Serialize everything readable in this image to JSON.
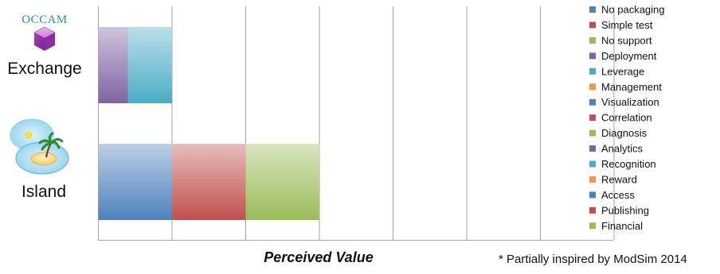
{
  "chart_data": {
    "type": "bar",
    "orientation": "horizontal",
    "stacked": true,
    "categories": [
      "OCCAM Exchange",
      "Island"
    ],
    "category_labels": [
      {
        "logo_text": "OCCAM",
        "label": "Exchange",
        "logo_icon": "cube-icon"
      },
      {
        "label": "Island",
        "logo_icon": "island-icon"
      }
    ],
    "xlabel": "Perceived Value",
    "xlim": [
      0,
      7
    ],
    "grid": "vertical",
    "xticks_shown": false,
    "legend_position": "right",
    "series": [
      {
        "name": "No packaging",
        "color": "#4f81bd",
        "values": [
          0,
          0
        ]
      },
      {
        "name": "Simple test",
        "color": "#c0504d",
        "values": [
          0,
          0
        ]
      },
      {
        "name": "No support",
        "color": "#9bbb59",
        "values": [
          0,
          0
        ]
      },
      {
        "name": "Deployment",
        "color": "#8064a2",
        "values": [
          0,
          0
        ]
      },
      {
        "name": "Leverage",
        "color": "#4bacc6",
        "values": [
          0,
          0
        ]
      },
      {
        "name": "Management",
        "color": "#f79646",
        "values": [
          0,
          0
        ]
      },
      {
        "name": "Visualization",
        "color": "#4f81bd",
        "values": [
          0,
          0
        ]
      },
      {
        "name": "Correlation",
        "color": "#c0504d",
        "values": [
          0,
          0
        ]
      },
      {
        "name": "Diagnosis",
        "color": "#9bbb59",
        "values": [
          0,
          0
        ]
      },
      {
        "name": "Analytics",
        "color": "#8064a2",
        "values": [
          0.4,
          0
        ]
      },
      {
        "name": "Recognition",
        "color": "#4bacc6",
        "values": [
          0.6,
          0
        ]
      },
      {
        "name": "Reward",
        "color": "#f79646",
        "values": [
          0,
          0
        ]
      },
      {
        "name": "Access",
        "color": "#4f81bd",
        "values": [
          0,
          1
        ]
      },
      {
        "name": "Publishing",
        "color": "#c0504d",
        "values": [
          0,
          1
        ]
      },
      {
        "name": "Financial",
        "color": "#9bbb59",
        "values": [
          0,
          1
        ]
      }
    ]
  },
  "footnote": "* Partially inspired by ModSim 2014"
}
